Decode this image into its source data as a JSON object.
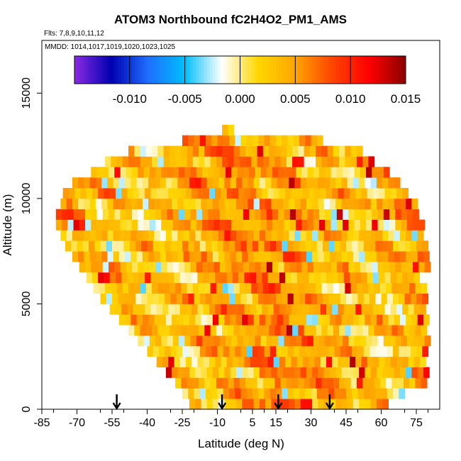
{
  "chart_data": {
    "type": "heatmap",
    "title": "ATOM3 Northbound fC2H4O2_PM1_AMS",
    "flights_label": "Flts: 7,8,9,10,11,12",
    "dates_label": "MMDD: 1014,1017,1019,1020,1023,1025",
    "xlabel": "Latitude (deg N)",
    "ylabel": "Altitude (m)",
    "xlim": [
      -85,
      85
    ],
    "ylim": [
      0,
      17500
    ],
    "x_ticks": [
      -85,
      -70,
      -55,
      -40,
      -25,
      -10,
      5,
      15,
      30,
      45,
      60,
      75
    ],
    "x_tick_labels": [
      "-85",
      "-70",
      "-55",
      "-40",
      "-25",
      "-10",
      "5",
      "15",
      "30",
      "45",
      "60",
      "75"
    ],
    "y_ticks": [
      0,
      5000,
      10000,
      15000
    ],
    "y_tick_labels": [
      "0",
      "5000",
      "10000",
      "15000"
    ],
    "colorbar": {
      "min": -0.015,
      "max": 0.015,
      "ticks": [
        -0.01,
        -0.005,
        0.0,
        0.005,
        0.01,
        0.015
      ],
      "tick_labels": [
        "-0.010",
        "-0.005",
        "0.000",
        "0.005",
        "0.010",
        "0.015"
      ],
      "colors": [
        "#8a2be2",
        "#0000b0",
        "#1e6fff",
        "#00bfff",
        "#ffffff",
        "#ffd700",
        "#ffa500",
        "#ff4500",
        "#ff0000",
        "#8b0000"
      ]
    },
    "arrow_latitudes": [
      -53,
      -8,
      16,
      38
    ],
    "grid": false,
    "altitude_bins_m": [
      250,
      750,
      1250,
      1750,
      2250,
      2750,
      3250,
      3750,
      4250,
      4750,
      5250,
      5750,
      6250,
      6750,
      7250,
      7750,
      8250,
      8750,
      9250,
      9750,
      10250,
      10750,
      11250,
      11750,
      12250,
      12750,
      13250
    ],
    "latitude_coverage_deg": [
      [
        -22,
        62
      ],
      [
        -25,
        70
      ],
      [
        -28,
        78
      ],
      [
        -32,
        79
      ],
      [
        -36,
        79
      ],
      [
        -40,
        79
      ],
      [
        -44,
        79
      ],
      [
        -48,
        79
      ],
      [
        -52,
        79
      ],
      [
        -56,
        79
      ],
      [
        -60,
        79
      ],
      [
        -63,
        79
      ],
      [
        -66,
        79
      ],
      [
        -69,
        79
      ],
      [
        -72,
        79
      ],
      [
        -75,
        78
      ],
      [
        -77,
        77
      ],
      [
        -79,
        77
      ],
      [
        -79,
        76
      ],
      [
        -77,
        74
      ],
      [
        -76,
        71
      ],
      [
        -72,
        67
      ],
      [
        -64,
        62
      ],
      [
        -58,
        57
      ],
      [
        -48,
        50
      ],
      [
        -25,
        35
      ],
      [
        -8,
        -4
      ]
    ],
    "value_range_shown": [
      -0.004,
      0.014
    ],
    "typical_value": 0.004
  }
}
